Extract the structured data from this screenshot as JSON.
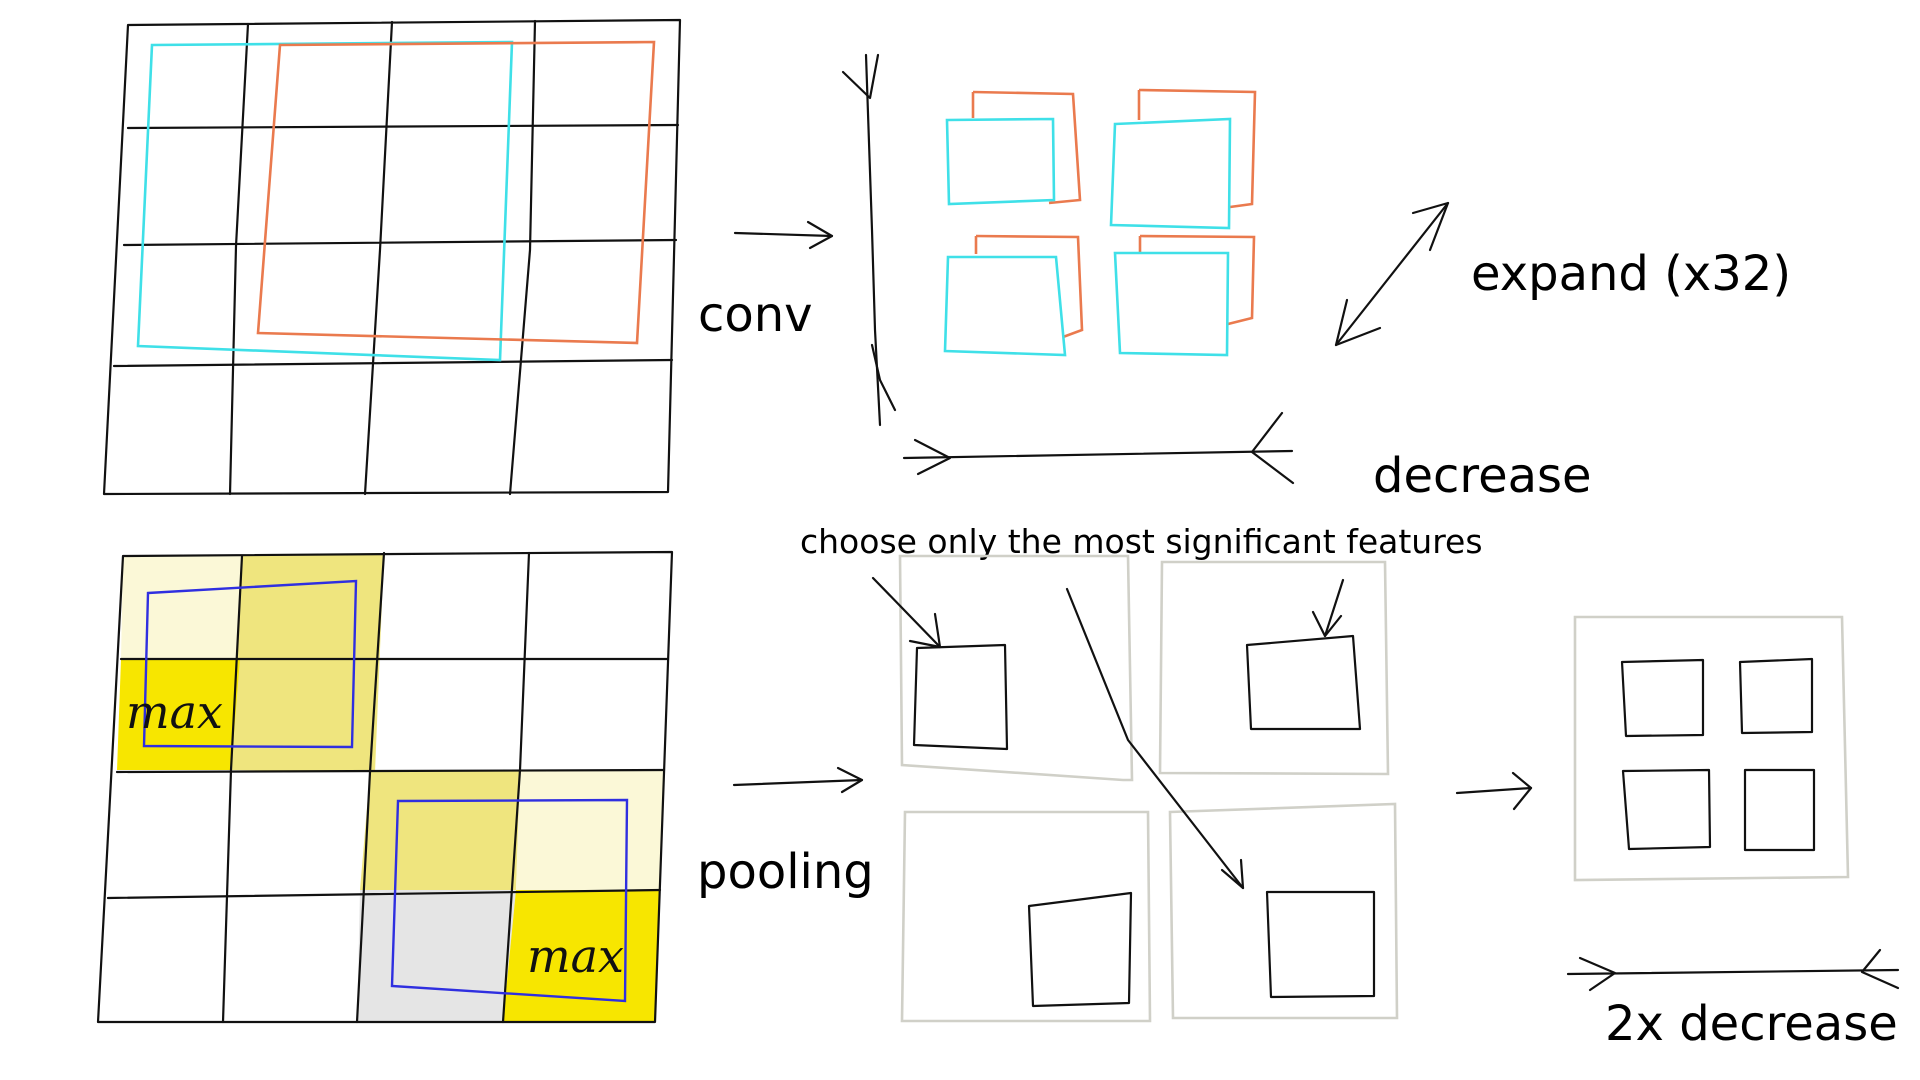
{
  "labels": {
    "conv": "conv",
    "expand": "expand (x32)",
    "decrease": "decrease",
    "choose": "choose only the most significant features",
    "pooling": "pooling",
    "decrease2x": "2x decrease",
    "max": "max"
  },
  "colors": {
    "ink": "#111111",
    "conv_window_1": "#3fe0e8",
    "conv_window_2": "#ea7a4e",
    "pool_window": "#2f2fe0",
    "max_cell": "#f7e600",
    "mid_cell": "#efe57e",
    "light_cell": "#fbf8d7",
    "min_cell": "#e5e5e5",
    "feature_frame": "#d0d0c8"
  }
}
